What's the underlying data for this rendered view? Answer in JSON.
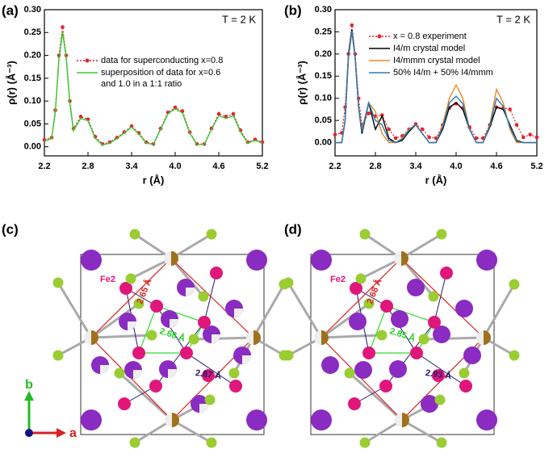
{
  "chart_data": [
    {
      "type": "line",
      "label": "(a)",
      "annotation": "T = 2 K",
      "xlabel": "r (Å)",
      "ylabel": "ρ(r) (Å⁻³)",
      "x": [
        2.2,
        2.3,
        2.35,
        2.4,
        2.45,
        2.5,
        2.55,
        2.6,
        2.7,
        2.8,
        2.9,
        3.0,
        3.1,
        3.2,
        3.3,
        3.4,
        3.5,
        3.6,
        3.7,
        3.8,
        3.9,
        4.0,
        4.1,
        4.2,
        4.3,
        4.4,
        4.5,
        4.6,
        4.7,
        4.8,
        4.9,
        5.0,
        5.1,
        5.2
      ],
      "series": [
        {
          "name": "data for superconducting x=0.8",
          "color": "#e8202a",
          "markers": true,
          "values": [
            0.015,
            0.02,
            0.08,
            0.2,
            0.262,
            0.2,
            0.1,
            0.04,
            0.066,
            0.06,
            0.022,
            0.006,
            0.01,
            0.02,
            0.032,
            0.045,
            0.03,
            0.01,
            0.006,
            0.04,
            0.075,
            0.086,
            0.078,
            0.032,
            0.006,
            0.006,
            0.04,
            0.072,
            0.066,
            0.072,
            0.036,
            0.01,
            0.016,
            0.01
          ]
        },
        {
          "name": "superposition of data for x=0.6\nand 1.0 in a 1:1 ratio",
          "color": "#33cc33",
          "markers": false,
          "values": [
            0.012,
            0.018,
            0.075,
            0.19,
            0.25,
            0.195,
            0.095,
            0.035,
            0.062,
            0.057,
            0.018,
            0.004,
            0.008,
            0.018,
            0.03,
            0.043,
            0.028,
            0.008,
            0.005,
            0.038,
            0.072,
            0.083,
            0.074,
            0.03,
            0.005,
            0.005,
            0.038,
            0.068,
            0.062,
            0.068,
            0.032,
            0.008,
            0.014,
            0.008
          ]
        }
      ],
      "xlim": [
        2.2,
        5.2
      ],
      "xticks": [
        2.2,
        2.8,
        3.4,
        {
          "value": 4,
          "label": "4.0"
        },
        4.6,
        5.2
      ],
      "ylim": [
        -0.02,
        0.3
      ],
      "yticks": [
        {
          "value": 0,
          "label": "0.00"
        },
        0.05,
        {
          "value": 0.1,
          "label": "0.10"
        },
        0.15,
        {
          "value": 0.2,
          "label": "0.20"
        },
        0.25,
        {
          "value": 0.3,
          "label": "0.30"
        }
      ],
      "legend": "upper left"
    },
    {
      "type": "line",
      "label": "(b)",
      "annotation": "T = 2 K",
      "xlabel": "r (Å)",
      "ylabel": "ρ(r) (Å⁻³)",
      "x": [
        2.2,
        2.3,
        2.35,
        2.4,
        2.45,
        2.5,
        2.55,
        2.6,
        2.7,
        2.8,
        2.9,
        3.0,
        3.1,
        3.2,
        3.3,
        3.4,
        3.5,
        3.6,
        3.7,
        3.8,
        3.9,
        4.0,
        4.1,
        4.2,
        4.3,
        4.4,
        4.5,
        4.6,
        4.7,
        4.8,
        4.9,
        5.0,
        5.1,
        5.2
      ],
      "series": [
        {
          "name": "x = 0.8 experiment",
          "color": "#e8202a",
          "markers": true,
          "values": [
            0.018,
            0.022,
            0.08,
            0.2,
            0.265,
            0.2,
            0.1,
            0.04,
            0.066,
            0.06,
            0.062,
            0.03,
            0.01,
            0.015,
            0.03,
            0.042,
            0.03,
            0.012,
            0.01,
            0.04,
            0.078,
            0.088,
            0.078,
            0.035,
            0.01,
            0.01,
            0.04,
            0.08,
            0.078,
            0.075,
            0.04,
            0.012,
            0.018,
            0.012
          ]
        },
        {
          "name": "I4/m crystal model",
          "color": "#000000",
          "markers": false,
          "values": [
            0.0,
            0.0,
            0.05,
            0.2,
            0.255,
            0.19,
            0.08,
            0.02,
            0.09,
            0.03,
            0.06,
            0.01,
            0.0,
            0.005,
            0.025,
            0.04,
            0.02,
            0.0,
            0.0,
            0.03,
            0.08,
            0.09,
            0.075,
            0.03,
            0.0,
            0.0,
            0.035,
            0.08,
            0.075,
            0.04,
            0.005,
            0.0,
            0.0,
            0.0
          ]
        },
        {
          "name": "I4/mmm crystal model",
          "color": "#e8891c",
          "markers": false,
          "values": [
            0.0,
            0.0,
            0.05,
            0.19,
            0.25,
            0.19,
            0.08,
            0.03,
            0.09,
            0.07,
            0.02,
            0.0,
            0.0,
            0.01,
            0.03,
            0.04,
            0.02,
            0.0,
            0.0,
            0.04,
            0.1,
            0.13,
            0.1,
            0.03,
            0.0,
            0.0,
            0.04,
            0.12,
            0.09,
            0.03,
            0.0,
            0.0,
            0.0,
            0.0
          ]
        },
        {
          "name": "50% I4/m + 50% I4/mmm",
          "color": "#2a7ab8",
          "markers": false,
          "values": [
            0.0,
            0.0,
            0.05,
            0.195,
            0.252,
            0.19,
            0.08,
            0.025,
            0.09,
            0.05,
            0.04,
            0.005,
            0.0,
            0.008,
            0.028,
            0.04,
            0.02,
            0.0,
            0.0,
            0.035,
            0.09,
            0.105,
            0.088,
            0.03,
            0.0,
            0.0,
            0.038,
            0.1,
            0.082,
            0.035,
            0.003,
            0.0,
            0.0,
            0.0
          ]
        }
      ],
      "xlim": [
        2.2,
        5.2
      ],
      "xticks": [
        2.2,
        2.8,
        3.4,
        {
          "value": 4,
          "label": "4.0"
        },
        4.6,
        5.2
      ],
      "ylim": [
        -0.03,
        0.3
      ],
      "yticks": [
        {
          "value": 0,
          "label": "0.00"
        },
        0.05,
        {
          "value": 0.1,
          "label": "0.10"
        },
        0.15,
        {
          "value": 0.2,
          "label": "0.20"
        },
        0.25,
        {
          "value": 0.3,
          "label": "0.30"
        }
      ],
      "legend": "upper right"
    }
  ],
  "structures": [
    {
      "label": "(c)",
      "atom_label": "Fe2",
      "distances": [
        "2.65 Å",
        "2.68 Å",
        "2.87 Å"
      ]
    },
    {
      "label": "(d)",
      "atom_label": "Fe2",
      "distances": [
        "2.68 Å",
        "2.85 Å",
        "2.93 Å"
      ]
    }
  ],
  "axes": {
    "vertical": "b",
    "horizontal": "a"
  }
}
